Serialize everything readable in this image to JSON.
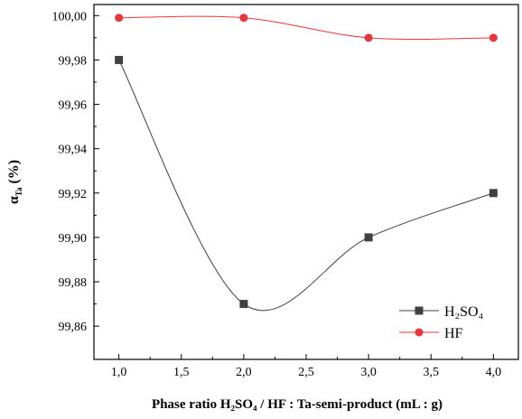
{
  "chart_data": {
    "type": "line",
    "x": [
      1.0,
      2.0,
      3.0,
      4.0
    ],
    "xlim": [
      0.8,
      4.2
    ],
    "ylim": [
      99.845,
      100.005
    ],
    "x_ticks": [
      "1,0",
      "1,5",
      "2,0",
      "2,5",
      "3,0",
      "3,5",
      "4,0"
    ],
    "x_tick_values": [
      1.0,
      1.5,
      2.0,
      2.5,
      3.0,
      3.5,
      4.0
    ],
    "y_ticks": [
      "99,86",
      "99,88",
      "99,90",
      "99,92",
      "99,94",
      "99,96",
      "99,98",
      "100,00"
    ],
    "y_tick_values": [
      99.86,
      99.88,
      99.9,
      99.92,
      99.94,
      99.96,
      99.98,
      100.0
    ],
    "xlabel": "Phase ratio  H₂SO₄ / HF : Ta-semi-product (mL : g)",
    "ylabel_main": "α",
    "ylabel_sub": "Ta",
    "ylabel_rest": " (%)",
    "legend_position": "bottom-right",
    "grid": false,
    "series": [
      {
        "name": "H₂SO₄",
        "values": [
          99.98,
          99.87,
          99.9,
          99.92
        ],
        "color": "#404040",
        "marker": "square"
      },
      {
        "name": "HF",
        "values": [
          99.999,
          99.999,
          99.99,
          99.99
        ],
        "color": "#e8353a",
        "marker": "circle"
      }
    ]
  }
}
